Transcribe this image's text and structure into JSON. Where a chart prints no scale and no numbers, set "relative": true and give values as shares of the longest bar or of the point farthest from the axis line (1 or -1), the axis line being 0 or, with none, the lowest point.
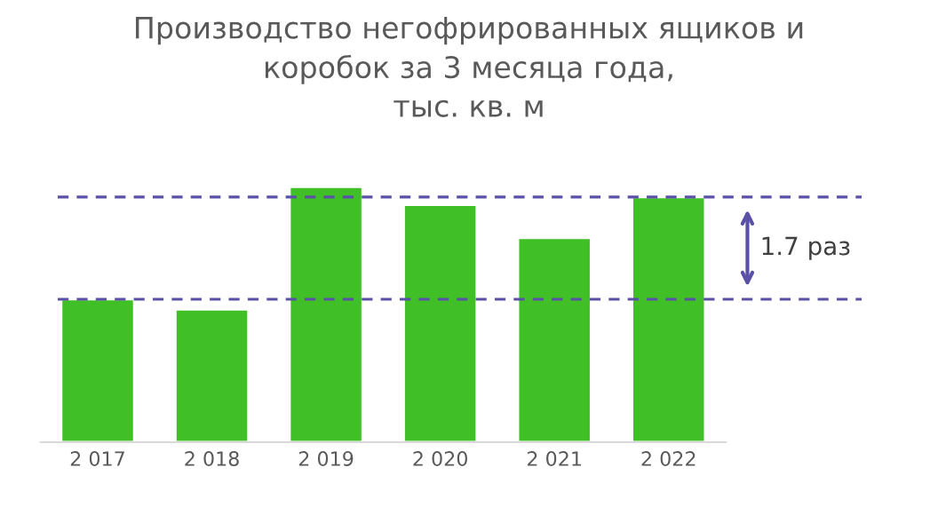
{
  "chart_data": {
    "type": "bar",
    "title": "Производство негофрированных ящиков и\nкоробок за 3 месяца года,\nтыс. кв. м",
    "categories": [
      "2 017",
      "2 018",
      "2 019",
      "2 020",
      "2 021",
      "2 022"
    ],
    "values": [
      0.56,
      0.52,
      1,
      0.93,
      0.8,
      0.96
    ],
    "color": "#40c026",
    "relative": true,
    "ref_lines": [
      {
        "axis": "y",
        "value": 0.96,
        "color": "#5b50a8",
        "line_style": "dashed"
      },
      {
        "axis": "y",
        "value": 0.56,
        "color": "#5b50a8",
        "line_style": "dashed"
      }
    ],
    "annotations": [
      "1.7 раз"
    ],
    "grid": false
  }
}
